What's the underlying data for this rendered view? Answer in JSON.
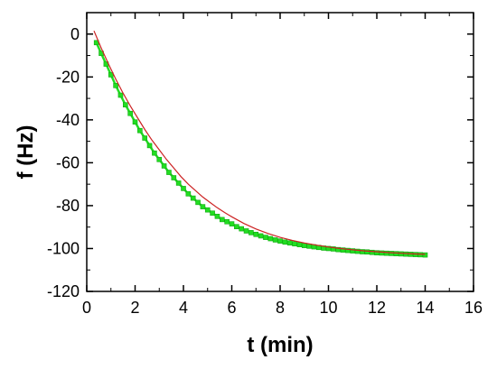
{
  "chart_data": {
    "type": "scatter",
    "title": "",
    "xlabel": "t (min)",
    "ylabel": "f (Hz)",
    "xlim": [
      0,
      16
    ],
    "ylim": [
      -120,
      10
    ],
    "xticks": [
      0,
      2,
      4,
      6,
      8,
      10,
      12,
      14,
      16
    ],
    "yticks": [
      0,
      -20,
      -40,
      -60,
      -80,
      -100,
      -120
    ],
    "grid": false,
    "legend": "none",
    "series": [
      {
        "kind": "scatter",
        "color": "#22dd22",
        "marker": "square",
        "x": [
          0.4,
          0.6,
          0.8,
          1.0,
          1.2,
          1.4,
          1.6,
          1.8,
          2.0,
          2.2,
          2.4,
          2.6,
          2.8,
          3.0,
          3.2,
          3.4,
          3.6,
          3.8,
          4.0,
          4.2,
          4.4,
          4.6,
          4.8,
          5.0,
          5.2,
          5.4,
          5.6,
          5.8,
          6.0,
          6.2,
          6.4,
          6.6,
          6.8,
          7.0,
          7.2,
          7.4,
          7.6,
          7.8,
          8.0,
          8.2,
          8.4,
          8.6,
          8.8,
          9.0,
          9.2,
          9.4,
          9.6,
          9.8,
          10.0,
          10.2,
          10.4,
          10.6,
          10.8,
          11.0,
          11.2,
          11.4,
          11.6,
          11.8,
          12.0,
          12.2,
          12.4,
          12.6,
          12.8,
          13.0,
          13.2,
          13.4,
          13.6,
          13.8,
          14.0
        ],
        "y": [
          -4,
          -9,
          -14,
          -19,
          -24,
          -28.5,
          -33,
          -37,
          -41,
          -45,
          -48.5,
          -52,
          -55.5,
          -58.5,
          -61.5,
          -64.5,
          -67,
          -69.5,
          -72,
          -74.5,
          -76.5,
          -78.5,
          -80.5,
          -82,
          -83.5,
          -85,
          -86.5,
          -87.5,
          -88.5,
          -89.8,
          -90.8,
          -91.8,
          -92.6,
          -93.4,
          -94.1,
          -94.8,
          -95.4,
          -96,
          -96.5,
          -97,
          -97.4,
          -97.8,
          -98.2,
          -98.6,
          -98.9,
          -99.2,
          -99.5,
          -99.8,
          -100,
          -100.2,
          -100.5,
          -100.7,
          -100.9,
          -101.1,
          -101.3,
          -101.5,
          -101.6,
          -101.8,
          -102,
          -102.1,
          -102.2,
          -102.3,
          -102.4,
          -102.5,
          -102.6,
          -102.7,
          -102.8,
          -102.9,
          -103
        ]
      },
      {
        "kind": "line",
        "color": "#cc2222",
        "x": [
          0.3,
          0.6,
          0.9,
          1.2,
          1.5,
          1.8,
          2.1,
          2.4,
          2.7,
          3.0,
          3.3,
          3.6,
          3.9,
          4.2,
          4.5,
          4.8,
          5.1,
          5.4,
          5.7,
          6.0,
          6.5,
          7.0,
          7.5,
          8.0,
          8.5,
          9.0,
          9.5,
          10.0,
          10.5,
          11.0,
          11.5,
          12.0,
          12.5,
          13.0,
          13.5,
          14.0
        ],
        "y": [
          1.5,
          -6.5,
          -14,
          -21,
          -27.5,
          -33.5,
          -39,
          -44.5,
          -49.5,
          -54,
          -58.5,
          -62.5,
          -66.5,
          -70,
          -73,
          -76,
          -78.5,
          -81,
          -83.2,
          -85.2,
          -88.3,
          -90.9,
          -93,
          -94.8,
          -96.2,
          -97.4,
          -98.4,
          -99.3,
          -100,
          -100.6,
          -101.1,
          -101.5,
          -101.9,
          -102.2,
          -102.5,
          -102.7
        ]
      }
    ]
  }
}
